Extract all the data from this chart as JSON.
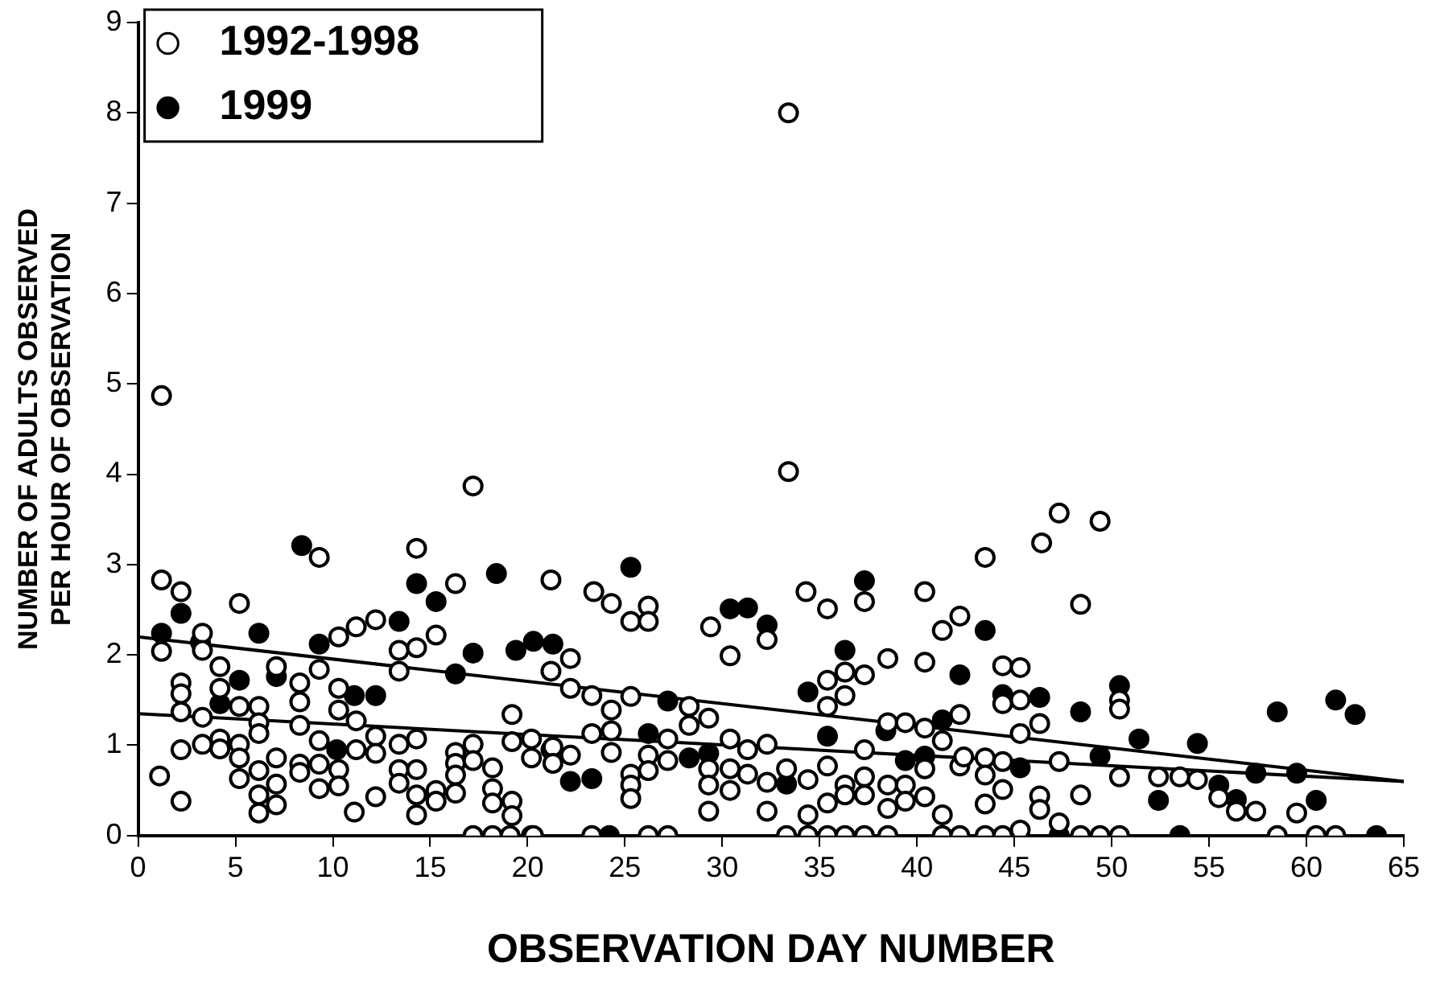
{
  "chart_data": {
    "type": "scatter",
    "xlabel": "OBSERVATION DAY NUMBER",
    "ylabel": "NUMBER OF ADULTS OBSERVED\nPER HOUR OF OBSERVATION",
    "xlim": [
      0,
      65
    ],
    "xticks": [
      0,
      5,
      10,
      15,
      20,
      25,
      30,
      35,
      40,
      45,
      50,
      55,
      60,
      65
    ],
    "ylim": [
      0,
      9
    ],
    "yticks": [
      0,
      1,
      2,
      3,
      4,
      5,
      6,
      7,
      8,
      9
    ],
    "grid": false,
    "legend": "top left",
    "marker": "circle",
    "series": [
      {
        "name": "1992-1998",
        "color": "#ffffff",
        "x": [
          1.2,
          1.2,
          2.2,
          1.2,
          1.1,
          2.2,
          2.2,
          2.2,
          2.2,
          2.2,
          3.3,
          3.3,
          3.3,
          3.3,
          4.2,
          4.2,
          4.2,
          4.2,
          5.2,
          5.2,
          5.2,
          5.2,
          5.2,
          6.2,
          6.2,
          6.2,
          6.2,
          6.2,
          6.2,
          7.1,
          7.1,
          7.1,
          7.1,
          8.3,
          8.3,
          8.3,
          8.3,
          8.3,
          9.3,
          9.3,
          9.3,
          9.3,
          9.3,
          10.3,
          10.3,
          10.3,
          10.3,
          10.3,
          11.2,
          11.2,
          11.2,
          11.1,
          12.2,
          12.2,
          12.2,
          12.2,
          13.4,
          13.4,
          13.4,
          13.4,
          13.4,
          14.3,
          14.3,
          14.3,
          14.3,
          14.3,
          14.3,
          15.3,
          15.3,
          15.3,
          16.3,
          16.3,
          16.3,
          16.3,
          16.3,
          17.2,
          17.2,
          17.2,
          17.2,
          18.2,
          18.2,
          18.2,
          18.2,
          19.2,
          19.2,
          19.2,
          19.2,
          19.1,
          20.2,
          20.2,
          20.2,
          21.2,
          21.2,
          21.2,
          20.3,
          33.4,
          33.4,
          23.4,
          24.3,
          25.3,
          26.2,
          26.2,
          29.4,
          30.4,
          32.3,
          34.3,
          35.4,
          37.3,
          40.4,
          38.5,
          40.4,
          41.3,
          42.2,
          22.2,
          22.2,
          23.3,
          24.3,
          25.3,
          23.3,
          24.3,
          24.3,
          21.3,
          21.3,
          22.2,
          25.3,
          25.3,
          25.3,
          26.2,
          26.2,
          27.2,
          27.2,
          28.3,
          28.3,
          29.3,
          29.3,
          29.3,
          29.3,
          30.4,
          30.4,
          30.4,
          31.3,
          31.3,
          32.3,
          32.3,
          32.3,
          33.3,
          34.4,
          34.4,
          35.4,
          35.4,
          35.4,
          35.4,
          36.3,
          36.3,
          36.3,
          36.3,
          37.3,
          37.3,
          37.3,
          37.3,
          38.5,
          38.5,
          38.5,
          39.4,
          39.4,
          39.4,
          40.4,
          40.4,
          40.4,
          41.3,
          41.3,
          42.2,
          42.2,
          23.3,
          26.2,
          27.2,
          33.3,
          34.4,
          35.4,
          36.3,
          37.3,
          38.5,
          41.3,
          42.2,
          47.3,
          49.4,
          46.4,
          43.5,
          48.4,
          44.4,
          45.3,
          44.4,
          45.3,
          50.4,
          50.4,
          46.3,
          45.3,
          42.4,
          43.5,
          43.5,
          43.5,
          44.4,
          44.4,
          47.3,
          48.4,
          46.3,
          46.3,
          50.4,
          52.4,
          53.5,
          54.4,
          55.5,
          56.4,
          57.4,
          59.5,
          47.3,
          43.5,
          44.4,
          45.3,
          48.4,
          49.4,
          50.4,
          58.5,
          60.5,
          61.5
        ],
        "values": [
          4.87,
          2.83,
          2.7,
          2.04,
          0.66,
          1.69,
          1.57,
          1.37,
          0.95,
          0.38,
          2.24,
          2.05,
          1.31,
          1.01,
          1.87,
          1.63,
          1.07,
          0.96,
          2.57,
          1.43,
          1.01,
          0.86,
          0.63,
          1.43,
          1.25,
          1.13,
          0.72,
          0.45,
          0.25,
          1.87,
          0.86,
          0.57,
          0.34,
          1.69,
          1.48,
          1.22,
          0.79,
          0.7,
          3.08,
          1.84,
          1.05,
          0.79,
          0.52,
          2.2,
          1.63,
          1.39,
          0.73,
          0.55,
          2.31,
          1.27,
          0.95,
          0.26,
          2.39,
          1.1,
          0.91,
          0.43,
          2.05,
          1.82,
          1.01,
          0.73,
          0.58,
          3.18,
          2.08,
          1.07,
          0.73,
          0.45,
          0.23,
          2.22,
          0.5,
          0.38,
          2.79,
          0.92,
          0.8,
          0.67,
          0.47,
          3.87,
          1.01,
          0.83,
          0,
          0.75,
          0.52,
          0.36,
          0,
          1.34,
          1.04,
          0.38,
          0.22,
          0,
          1.07,
          0.86,
          0,
          2.83,
          1.82,
          0.95,
          0,
          8.0,
          4.03,
          2.7,
          2.57,
          2.37,
          2.54,
          2.37,
          2.31,
          1.99,
          2.17,
          2.7,
          2.51,
          2.59,
          2.7,
          1.96,
          1.92,
          2.27,
          2.43,
          1.96,
          1.63,
          1.55,
          1.39,
          1.54,
          1.13,
          1.16,
          0.92,
          0.98,
          0.8,
          0.89,
          0.68,
          0.56,
          0.41,
          0.89,
          0.72,
          1.07,
          0.83,
          1.43,
          1.22,
          1.3,
          0.74,
          0.56,
          0.27,
          1.07,
          0.74,
          0.5,
          0.95,
          0.68,
          1.01,
          0.59,
          0.27,
          0.74,
          0.62,
          0.23,
          1.72,
          1.43,
          0.77,
          0.36,
          1.81,
          1.55,
          0.56,
          0.45,
          1.78,
          0.95,
          0.65,
          0.45,
          1.25,
          0.56,
          0.3,
          1.25,
          0.56,
          0.38,
          1.19,
          0.74,
          0.43,
          1.05,
          0.23,
          1.34,
          0.77,
          0,
          0,
          0,
          0,
          0,
          0,
          0,
          0,
          0,
          0,
          0,
          3.57,
          3.48,
          3.24,
          3.08,
          2.56,
          1.88,
          1.86,
          1.46,
          1.5,
          1.5,
          1.4,
          1.24,
          1.13,
          0.87,
          0.86,
          0.67,
          0.35,
          0.82,
          0.51,
          0.82,
          0.45,
          0.44,
          0.29,
          0.65,
          0.65,
          0.65,
          0.62,
          0.42,
          0.27,
          0.27,
          0.25,
          0.14,
          0,
          0,
          0.06,
          0,
          0,
          0,
          0,
          0,
          0
        ]
      },
      {
        "name": "1999",
        "color": "#000000",
        "x": [
          1.2,
          2.2,
          3.2,
          4.2,
          5.2,
          6.2,
          7.1,
          8.4,
          9.3,
          11.1,
          12.2,
          10.2,
          13.4,
          14.3,
          15.3,
          16.3,
          17.2,
          18.4,
          19.4,
          20.3,
          21.3,
          25.3,
          30.4,
          31.3,
          32.3,
          27.2,
          26.2,
          22.2,
          23.3,
          28.3,
          29.3,
          24.2,
          33.3,
          34.4,
          35.4,
          36.3,
          37.3,
          38.4,
          39.4,
          40.4,
          41.3,
          42.2,
          43.5,
          44.4,
          46.3,
          48.4,
          50.4,
          45.3,
          47.3,
          49.4,
          51.4,
          52.4,
          53.5,
          54.4,
          55.5,
          56.4,
          57.4,
          58.5,
          59.5,
          60.5,
          61.5,
          62.5,
          63.6
        ],
        "values": [
          2.24,
          2.46,
          2.14,
          1.46,
          1.72,
          2.24,
          1.76,
          3.21,
          2.12,
          1.55,
          1.55,
          0.95,
          2.37,
          2.79,
          2.59,
          1.79,
          2.02,
          2.9,
          2.05,
          2.15,
          2.12,
          2.97,
          2.51,
          2.52,
          2.33,
          1.49,
          1.13,
          0.6,
          0.63,
          0.86,
          0.91,
          0,
          0.57,
          1.59,
          1.1,
          2.05,
          2.82,
          1.16,
          0.83,
          0.88,
          1.28,
          1.78,
          2.27,
          1.56,
          1.53,
          1.37,
          1.66,
          0.75,
          0,
          0.88,
          1.07,
          0.39,
          0,
          1.02,
          0.56,
          0.4,
          0.69,
          1.37,
          0.69,
          0.39,
          1.5,
          1.34,
          0
        ]
      },
      {
        "type": "line",
        "marker": "none",
        "color": "#000000",
        "x": [
          0,
          65
        ],
        "values": [
          2.2,
          0.6
        ]
      },
      {
        "type": "line",
        "marker": "none",
        "color": "#000000",
        "x": [
          0,
          65
        ],
        "values": [
          1.35,
          0.6
        ]
      }
    ]
  }
}
